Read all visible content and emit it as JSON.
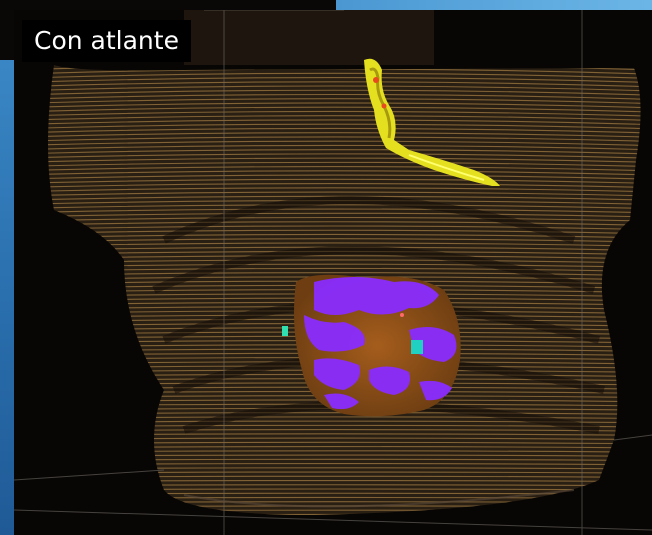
{
  "caption": {
    "text": "Con atlante"
  },
  "colors": {
    "contour_lines": "#8a6a3a",
    "heart_tissue": "#9a5a1a",
    "heart_overlay": "#8a2cff",
    "airway": "#e4e020",
    "marker": "#20d0c0",
    "side_panel": "#2a6fae"
  }
}
